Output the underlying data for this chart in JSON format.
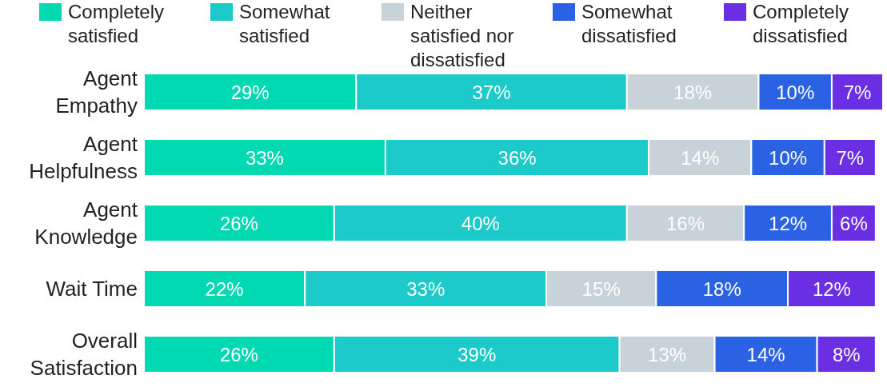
{
  "chart_data": {
    "type": "bar",
    "orientation": "horizontal",
    "stacked": true,
    "legend": "top",
    "categories": [
      "Agent Empathy",
      "Agent Helpfulness",
      "Agent Knowledge",
      "Wait Time",
      "Overall Satisfaction"
    ],
    "xlim": [
      0,
      101
    ],
    "tick_labels": "y",
    "series": [
      {
        "name": "Completely satisfied",
        "color": "#00d9b2",
        "values": [
          29,
          33,
          26,
          22,
          26
        ],
        "value_labels": [
          "29%",
          "33%",
          "26%",
          "22%",
          "26%"
        ]
      },
      {
        "name": "Somewhat satisfied",
        "color": "#1ccbc9",
        "values": [
          37,
          36,
          40,
          33,
          39
        ],
        "value_labels": [
          "37%",
          "36%",
          "40%",
          "33%",
          "39%"
        ]
      },
      {
        "name": "Neither satisfied nor dissatisfied",
        "color": "#c8d3d9",
        "values": [
          18,
          14,
          16,
          15,
          13
        ],
        "value_labels": [
          "18%",
          "14%",
          "16%",
          "15%",
          "13%"
        ]
      },
      {
        "name": "Somewhat dissatisfied",
        "color": "#2b62e3",
        "values": [
          10,
          10,
          12,
          18,
          14
        ],
        "value_labels": [
          "10%",
          "10%",
          "12%",
          "18%",
          "14%"
        ]
      },
      {
        "name": "Completely dissatisfied",
        "color": "#6a2fe3",
        "values": [
          7,
          7,
          6,
          12,
          8
        ],
        "value_labels": [
          "7%",
          "7%",
          "6%",
          "12%",
          "8%"
        ]
      }
    ]
  }
}
